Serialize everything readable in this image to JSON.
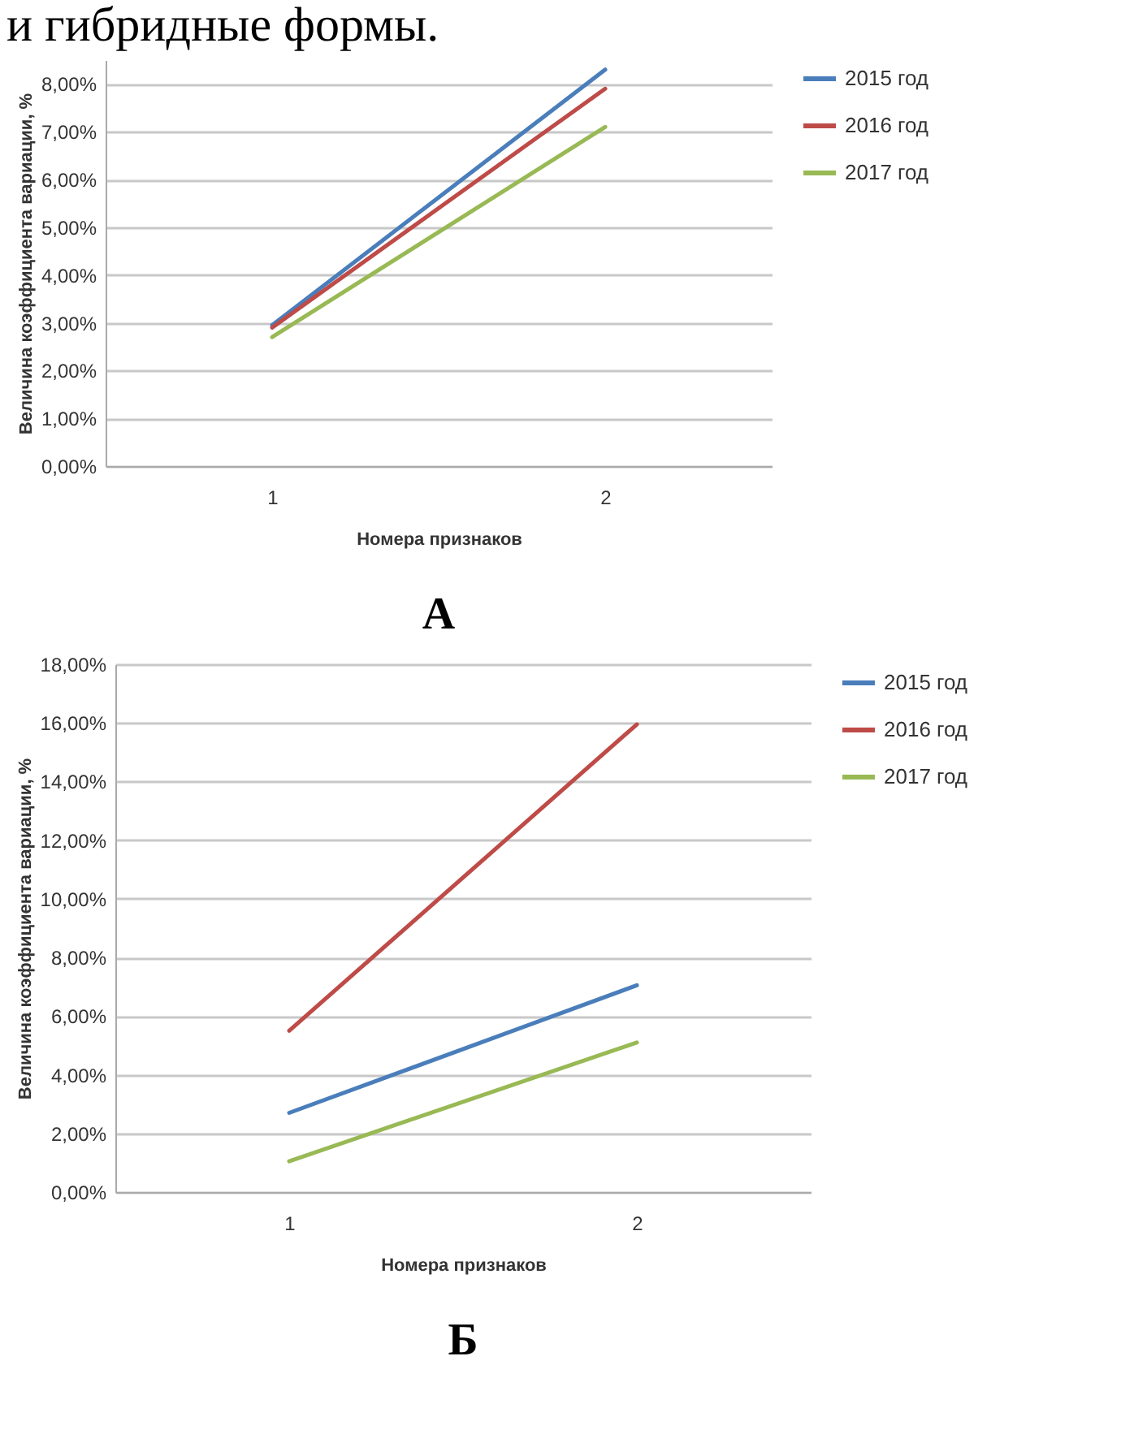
{
  "chart_data": [
    {
      "type": "line",
      "title": "А",
      "annotations": [
        "и гибридные формы."
      ],
      "xlabel": "Номера признаков",
      "ylabel": "Величина коэффициента вариации, %",
      "categories": [
        "1",
        "2"
      ],
      "series": [
        {
          "name": "2015 год",
          "color": "#4a7ebb",
          "values": [
            2.95,
            8.3
          ]
        },
        {
          "name": "2016 год",
          "color": "#be4b48",
          "values": [
            2.9,
            7.9
          ]
        },
        {
          "name": "2017 год",
          "color": "#98b954",
          "values": [
            2.7,
            7.1
          ]
        }
      ],
      "ylim": [
        0,
        8.5
      ],
      "yticks": [
        {
          "value": 0,
          "label": "0,00%"
        },
        {
          "value": 1,
          "label": "1,00%"
        },
        {
          "value": 2,
          "label": "2,00%"
        },
        {
          "value": 3,
          "label": "3,00%"
        },
        {
          "value": 4,
          "label": "4,00%"
        },
        {
          "value": 5,
          "label": "5,00%"
        },
        {
          "value": 6,
          "label": "6,00%"
        },
        {
          "value": 7,
          "label": "7,00%"
        },
        {
          "value": 8,
          "label": "8,00%"
        }
      ],
      "grid": "y",
      "legend": "right"
    },
    {
      "type": "line",
      "title": "Б",
      "xlabel": "Номера признаков",
      "ylabel": "Величина коэффициента вариации, %",
      "categories": [
        "1",
        "2"
      ],
      "series": [
        {
          "name": "2015 год",
          "color": "#4a7ebb",
          "values": [
            2.7,
            7.05
          ]
        },
        {
          "name": "2016 год",
          "color": "#be4b48",
          "values": [
            5.5,
            15.95
          ]
        },
        {
          "name": "2017 год",
          "color": "#98b954",
          "values": [
            1.05,
            5.1
          ]
        }
      ],
      "ylim": [
        0,
        18
      ],
      "yticks": [
        {
          "value": 0,
          "label": "0,00%"
        },
        {
          "value": 2,
          "label": "2,00%"
        },
        {
          "value": 4,
          "label": "4,00%"
        },
        {
          "value": 6,
          "label": "6,00%"
        },
        {
          "value": 8,
          "label": "8,00%"
        },
        {
          "value": 10,
          "label": "10,00%"
        },
        {
          "value": 12,
          "label": "12,00%"
        },
        {
          "value": 14,
          "label": "14,00%"
        },
        {
          "value": 16,
          "label": "16,00%"
        },
        {
          "value": 18,
          "label": "18,00%"
        }
      ],
      "grid": "y",
      "legend": "right"
    }
  ]
}
